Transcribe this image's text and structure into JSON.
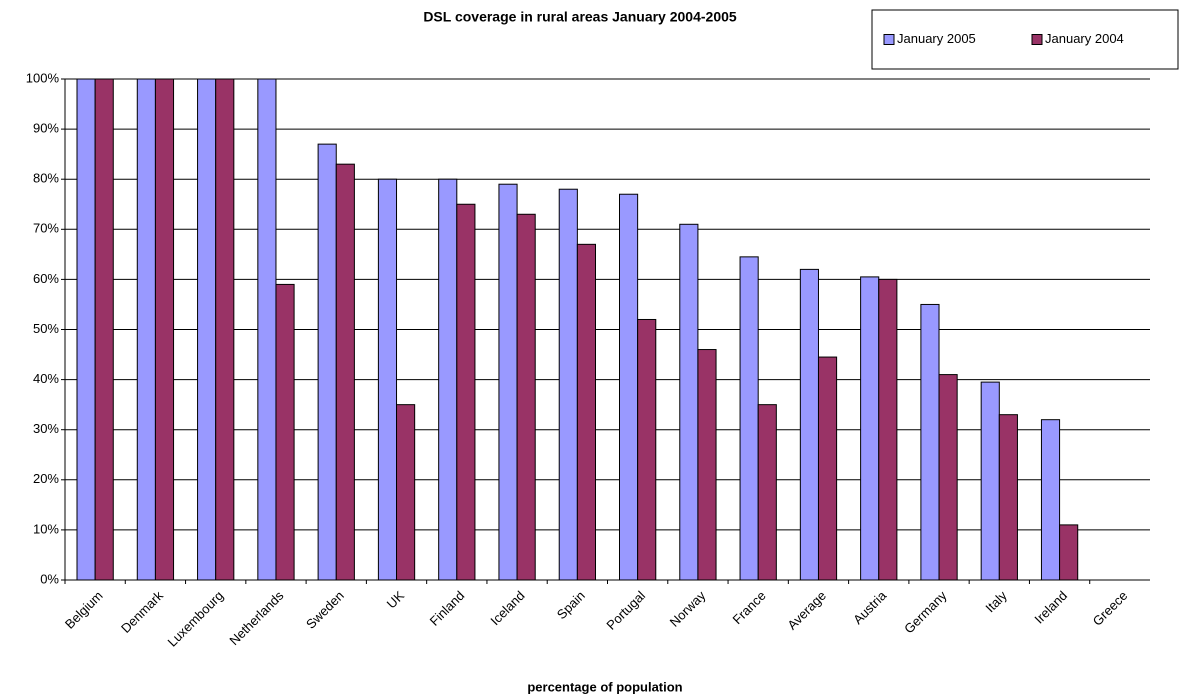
{
  "chart_data": {
    "type": "bar",
    "title": "DSL coverage in rural areas January 2004-2005",
    "x_label": "percentage of population",
    "categories": [
      "Belgium",
      "Denmark",
      "Luxembourg",
      "Netherlands",
      "Sweden",
      "UK",
      "Finland",
      "Iceland",
      "Spain",
      "Portugal",
      "Norway",
      "France",
      "Average",
      "Austria",
      "Germany",
      "Italy",
      "Ireland",
      "Greece"
    ],
    "series": [
      {
        "name": "January 2005",
        "color": "#9999ff",
        "values": [
          100,
          100,
          100,
          100,
          87,
          80,
          80,
          79,
          78,
          77,
          71,
          64.5,
          62,
          60.5,
          55,
          39.5,
          32,
          0
        ]
      },
      {
        "name": "January 2004",
        "color": "#993366",
        "values": [
          100,
          100,
          100,
          59,
          83,
          35,
          75,
          73,
          67,
          52,
          46,
          35,
          44.5,
          60,
          41,
          33,
          11,
          0
        ]
      }
    ],
    "ylim": [
      0,
      100
    ],
    "yticks": [
      {
        "value": 0,
        "label": "0%"
      },
      {
        "value": 10,
        "label": "10%"
      },
      {
        "value": 20,
        "label": "20%"
      },
      {
        "value": 30,
        "label": "30%"
      },
      {
        "value": 40,
        "label": "40%"
      },
      {
        "value": 50,
        "label": "50%"
      },
      {
        "value": 60,
        "label": "60%"
      },
      {
        "value": 70,
        "label": "70%"
      },
      {
        "value": 80,
        "label": "80%"
      },
      {
        "value": 90,
        "label": "90%"
      },
      {
        "value": 100,
        "label": "100%"
      }
    ],
    "grid": true,
    "legend": "top-right"
  }
}
